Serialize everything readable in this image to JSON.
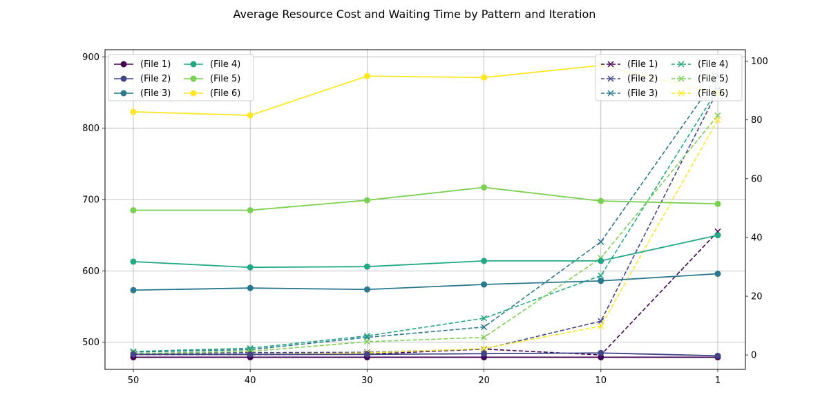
{
  "chart_data": {
    "type": "line",
    "title": "Average Resource Cost and Waiting Time by Pattern and Iteration",
    "xlabel": "",
    "ylabel_left": "",
    "ylabel_right": "",
    "categories": [
      "50",
      "40",
      "30",
      "20",
      "10",
      "1"
    ],
    "grid": true,
    "left_axis": {
      "ticks": [
        500,
        600,
        700,
        800,
        900
      ],
      "ylim": [
        462,
        910
      ]
    },
    "right_axis": {
      "ticks": [
        0,
        20,
        40,
        60,
        80,
        100
      ],
      "ylim": [
        -4.9,
        103.9
      ]
    },
    "left_legend_placement": "upper-left",
    "right_legend_placement": "upper-right",
    "resource_cost_series": [
      {
        "name": "(File 1)",
        "color": "#440154",
        "values": [
          479,
          479,
          479,
          479,
          479,
          479
        ]
      },
      {
        "name": "(File 2)",
        "color": "#414487",
        "values": [
          483,
          483,
          483,
          484,
          485,
          481
        ]
      },
      {
        "name": "(File 3)",
        "color": "#2a788e",
        "values": [
          573,
          576,
          574,
          581,
          586,
          596
        ]
      },
      {
        "name": "(File 4)",
        "color": "#22a884",
        "values": [
          613,
          605,
          606,
          614,
          614,
          650
        ]
      },
      {
        "name": "(File 5)",
        "color": "#7ad151",
        "values": [
          685,
          685,
          699,
          717,
          698,
          694
        ]
      },
      {
        "name": "(File 6)",
        "color": "#fde725",
        "values": [
          823,
          818,
          873,
          871,
          888,
          849
        ]
      }
    ],
    "waiting_time_series": [
      {
        "name": "(File 1)",
        "color": "#440154",
        "values": [
          0.1,
          0.1,
          0.3,
          2.0,
          0.0,
          42.0
        ]
      },
      {
        "name": "(File 2)",
        "color": "#414487",
        "values": [
          0.5,
          0.8,
          0.9,
          2.0,
          11.5,
          90.0
        ]
      },
      {
        "name": "(File 3)",
        "color": "#2a788e",
        "values": [
          1.0,
          1.8,
          6.0,
          9.5,
          38.5,
          95.0
        ]
      },
      {
        "name": "(File 4)",
        "color": "#22a884",
        "values": [
          1.2,
          2.3,
          6.5,
          12.5,
          27.0,
          90.5
        ]
      },
      {
        "name": "(File 5)",
        "color": "#7ad151",
        "values": [
          0.5,
          1.2,
          4.5,
          6.0,
          33.0,
          81.5
        ]
      },
      {
        "name": "(File 6)",
        "color": "#fde725",
        "values": [
          0.2,
          0.2,
          0.7,
          2.2,
          9.8,
          80.0
        ]
      }
    ]
  }
}
